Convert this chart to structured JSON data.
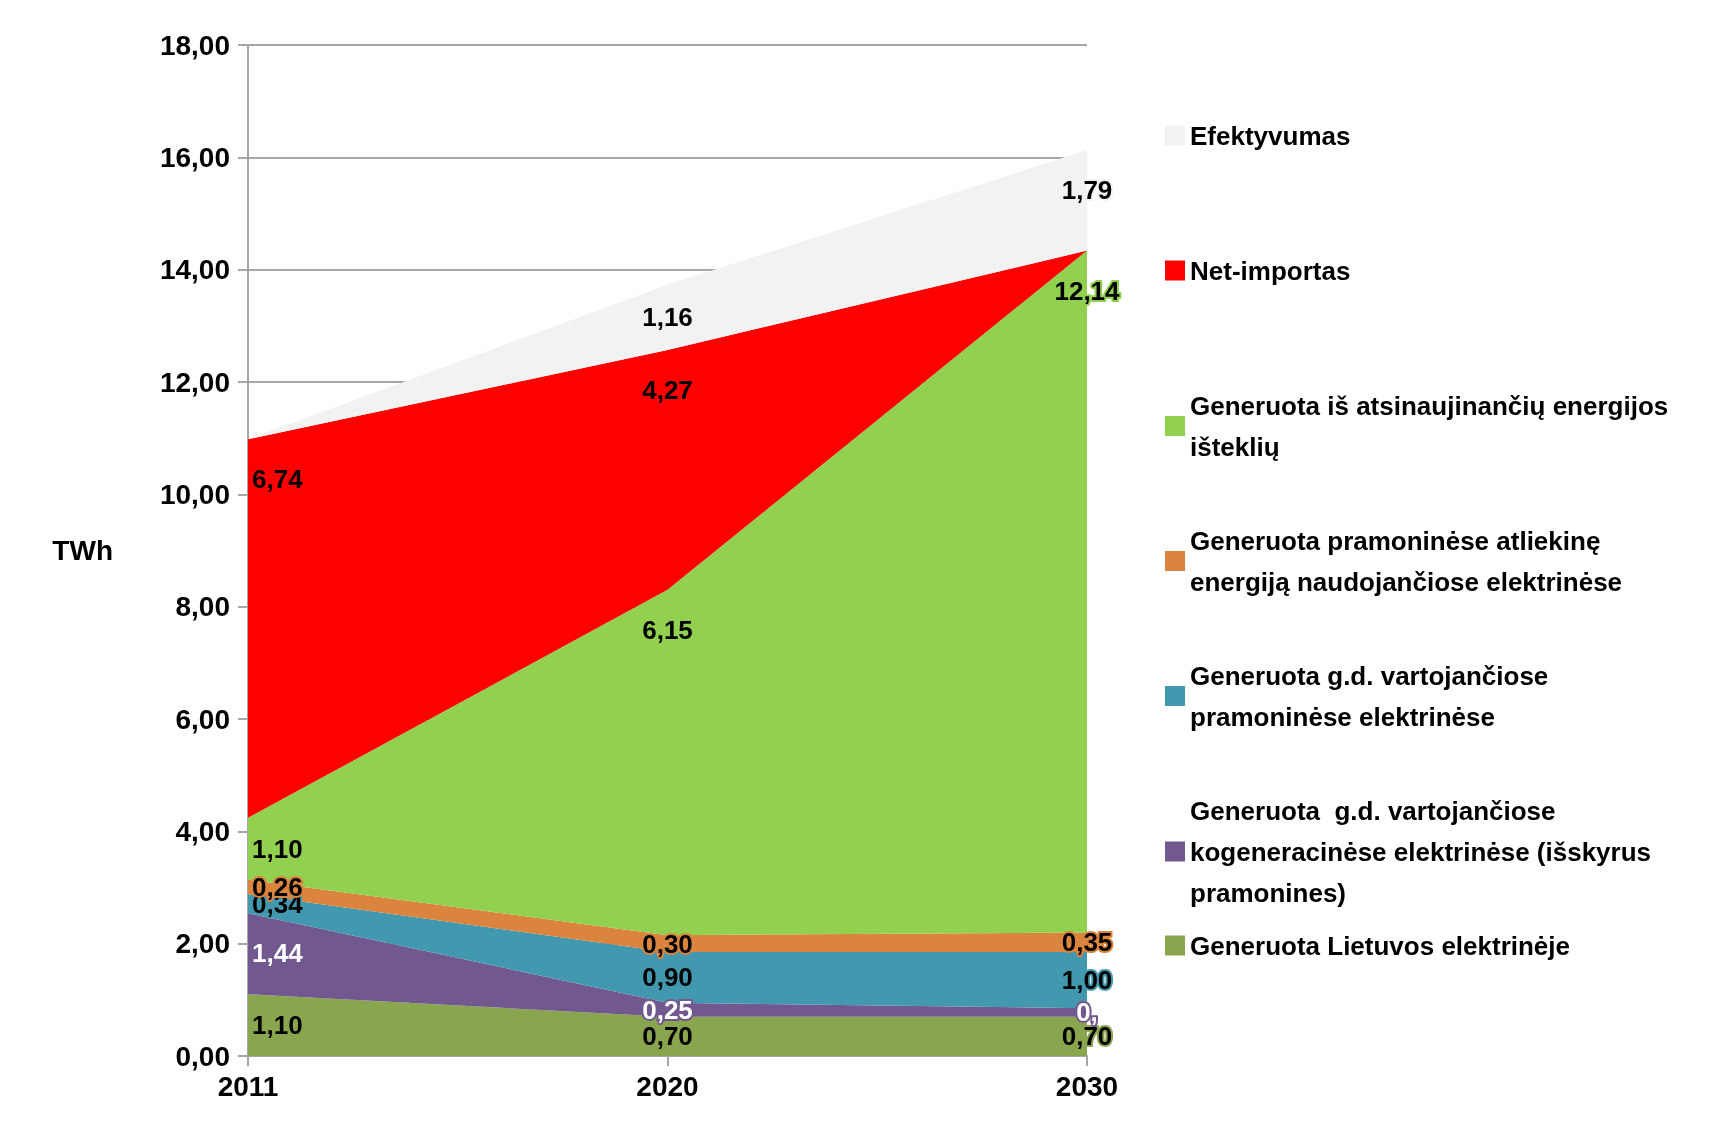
{
  "chart_data": {
    "type": "area",
    "stacked": true,
    "ylabel": "TWh",
    "categories": [
      "2011",
      "2020",
      "2030"
    ],
    "series": [
      {
        "name": "Generuota Lietuvos elektrinėje",
        "color": "#89a54e",
        "values": [
          1.1,
          0.7,
          0.7
        ],
        "value_labels": [
          "1,10",
          "0,70",
          "0,70"
        ]
      },
      {
        "name": "Generuota  g.d. vartojančiose kogeneracinėse elektrinėse (išskyrus pramonines)",
        "color": "#71588f",
        "values": [
          1.44,
          0.25,
          0.15
        ],
        "value_labels": [
          "1,44",
          "0,25",
          "0,"
        ]
      },
      {
        "name": "Generuota g.d. vartojančiose pramoninėse elektrinėse",
        "color": "#4198af",
        "values": [
          0.34,
          0.9,
          1.0
        ],
        "value_labels": [
          "0,34",
          "0,90",
          "1,00"
        ]
      },
      {
        "name": "Generuota pramoninėse atliekinę energiją naudojančiose elektrinėse",
        "color": "#db843d",
        "values": [
          0.26,
          0.3,
          0.35
        ],
        "value_labels": [
          "0,26",
          "0,30",
          "0,35"
        ]
      },
      {
        "name": "Generuota iš atsinaujinančių energijos išteklių",
        "color": "#92d050",
        "values": [
          1.1,
          6.15,
          12.14
        ],
        "value_labels": [
          "1,10",
          "6,15",
          "12,14"
        ]
      },
      {
        "name": "Net-importas",
        "color": "#ff0000",
        "values": [
          6.74,
          4.27,
          0
        ],
        "value_labels": [
          "6,74",
          "4,27",
          null
        ]
      },
      {
        "name": "Efektyvumas",
        "color": "#f2f2f2",
        "values": [
          0,
          1.16,
          1.79
        ],
        "value_labels": [
          null,
          "1,16",
          "1,79"
        ]
      }
    ],
    "ylim": [
      0,
      18
    ],
    "yticks": [
      {
        "value": 0,
        "label": "0,00"
      },
      {
        "value": 2,
        "label": "2,00"
      },
      {
        "value": 4,
        "label": "4,00"
      },
      {
        "value": 6,
        "label": "6,00"
      },
      {
        "value": 8,
        "label": "8,00"
      },
      {
        "value": 10,
        "label": "10,00"
      },
      {
        "value": 12,
        "label": "12,00"
      },
      {
        "value": 14,
        "label": "14,00"
      },
      {
        "value": 16,
        "label": "16,00"
      },
      {
        "value": 18,
        "label": "18,00"
      }
    ],
    "grid": "y",
    "legend": "right",
    "marker": "none"
  }
}
